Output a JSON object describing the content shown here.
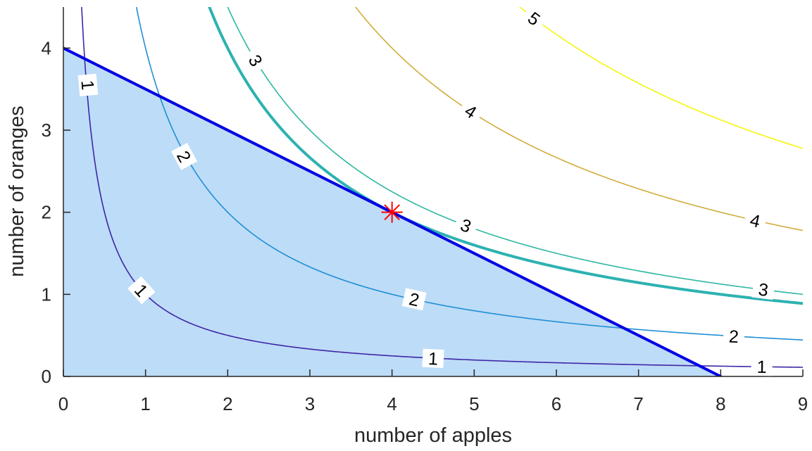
{
  "chart_data": {
    "type": "contour",
    "title": "",
    "xlabel": "number of apples",
    "ylabel": "number of oranges",
    "xlim": [
      0,
      9
    ],
    "ylim": [
      0,
      4.5
    ],
    "x_ticks": [
      "0",
      "1",
      "2",
      "3",
      "4",
      "5",
      "6",
      "7",
      "8",
      "9"
    ],
    "y_ticks": [
      "0",
      "1",
      "2",
      "3",
      "4"
    ],
    "grid": false,
    "function": "utility = sqrt(apples * oranges)",
    "contour_levels": [
      {
        "level": 1,
        "label": "1",
        "color": "#3e26a8",
        "label_positions": [
          [
            0.3,
            3.55
          ],
          [
            0.95,
            1.05
          ],
          [
            4.5,
            0.22
          ],
          [
            8.5,
            0.12
          ]
        ]
      },
      {
        "level": 2,
        "label": "2",
        "color": "#1f8fd6",
        "label_positions": [
          [
            1.47,
            2.68
          ],
          [
            4.27,
            0.94
          ],
          [
            8.16,
            0.49
          ]
        ]
      },
      {
        "level": 3,
        "label": "3",
        "color": "#2eb7a1",
        "label_positions": [
          [
            2.34,
            3.85
          ],
          [
            4.9,
            1.84
          ],
          [
            8.52,
            1.06
          ]
        ]
      },
      {
        "level": 4,
        "label": "4",
        "color": "#d0ad3b",
        "label_positions": [
          [
            4.96,
            3.23
          ],
          [
            8.42,
            1.9
          ]
        ]
      },
      {
        "level": 5,
        "label": "5",
        "color": "#f5f50c",
        "label_positions": [
          [
            5.73,
            4.36
          ]
        ]
      }
    ],
    "optimal_indifference_curve": {
      "level": 2.828,
      "color": "#2db2b1"
    },
    "budget_line": {
      "points": [
        [
          0,
          4
        ],
        [
          8,
          0
        ]
      ],
      "color": "#0000e6"
    },
    "feasible_region": {
      "vertices": [
        [
          0,
          0
        ],
        [
          0,
          4
        ],
        [
          8,
          0
        ]
      ],
      "color": "#bddcf7"
    },
    "optimum": {
      "x": 4,
      "y": 2,
      "marker": "asterisk",
      "color": "#ff0000"
    }
  }
}
